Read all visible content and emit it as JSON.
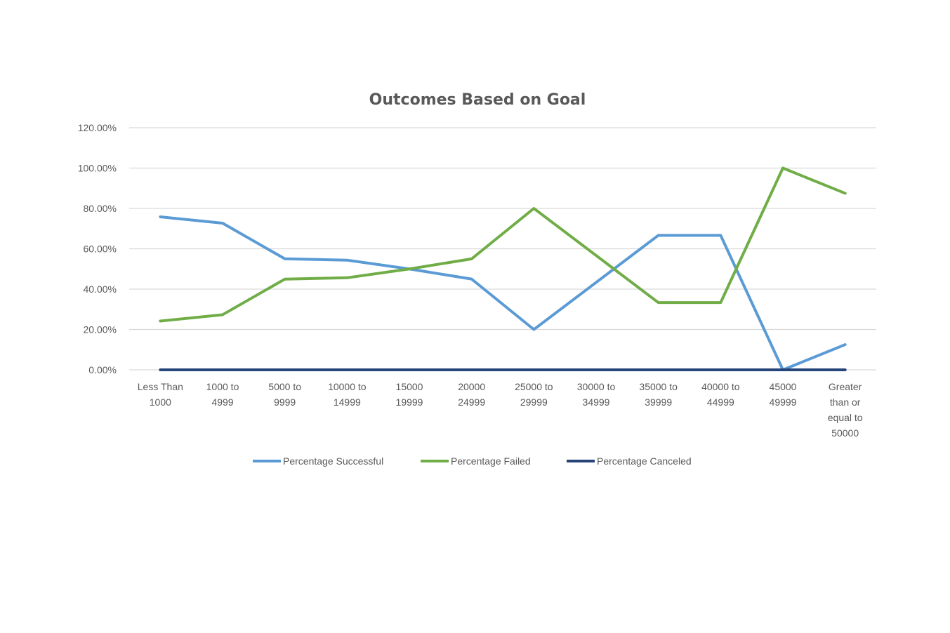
{
  "chart_data": {
    "type": "line",
    "title": "Outcomes Based on Goal",
    "xlabel": "",
    "ylabel": "",
    "ylim": [
      0,
      1.2
    ],
    "y_tick_labels": [
      "0.00%",
      "20.00%",
      "40.00%",
      "60.00%",
      "80.00%",
      "100.00%",
      "120.00%"
    ],
    "grid": true,
    "legend_position": "bottom",
    "categories": [
      [
        "Less Than",
        "1000"
      ],
      [
        "1000 to",
        "4999"
      ],
      [
        "5000 to",
        "9999"
      ],
      [
        "10000 to",
        "14999"
      ],
      [
        "15000",
        "19999"
      ],
      [
        "20000",
        "24999"
      ],
      [
        "25000 to",
        "29999"
      ],
      [
        "30000 to",
        "34999"
      ],
      [
        "35000 to",
        "39999"
      ],
      [
        "40000 to",
        "44999"
      ],
      [
        "45000",
        "49999"
      ],
      [
        "Greater",
        "than or",
        "equal to",
        "50000"
      ]
    ],
    "series": [
      {
        "name": "Percentage Successful",
        "color": "#5b9bd5",
        "values": [
          0.7582,
          0.7268,
          0.5503,
          0.5437,
          0.5,
          0.45,
          0.2,
          0.4333,
          0.6667,
          0.6667,
          0.0,
          0.125
        ]
      },
      {
        "name": "Percentage Failed",
        "color": "#70ad47",
        "values": [
          0.2418,
          0.2732,
          0.4497,
          0.4563,
          0.5,
          0.55,
          0.8,
          0.5667,
          0.3333,
          0.3333,
          1.0,
          0.875
        ]
      },
      {
        "name": "Percentage Canceled",
        "color": "#264478",
        "values": [
          0,
          0,
          0,
          0,
          0,
          0,
          0,
          0,
          0,
          0,
          0,
          0
        ]
      }
    ]
  }
}
